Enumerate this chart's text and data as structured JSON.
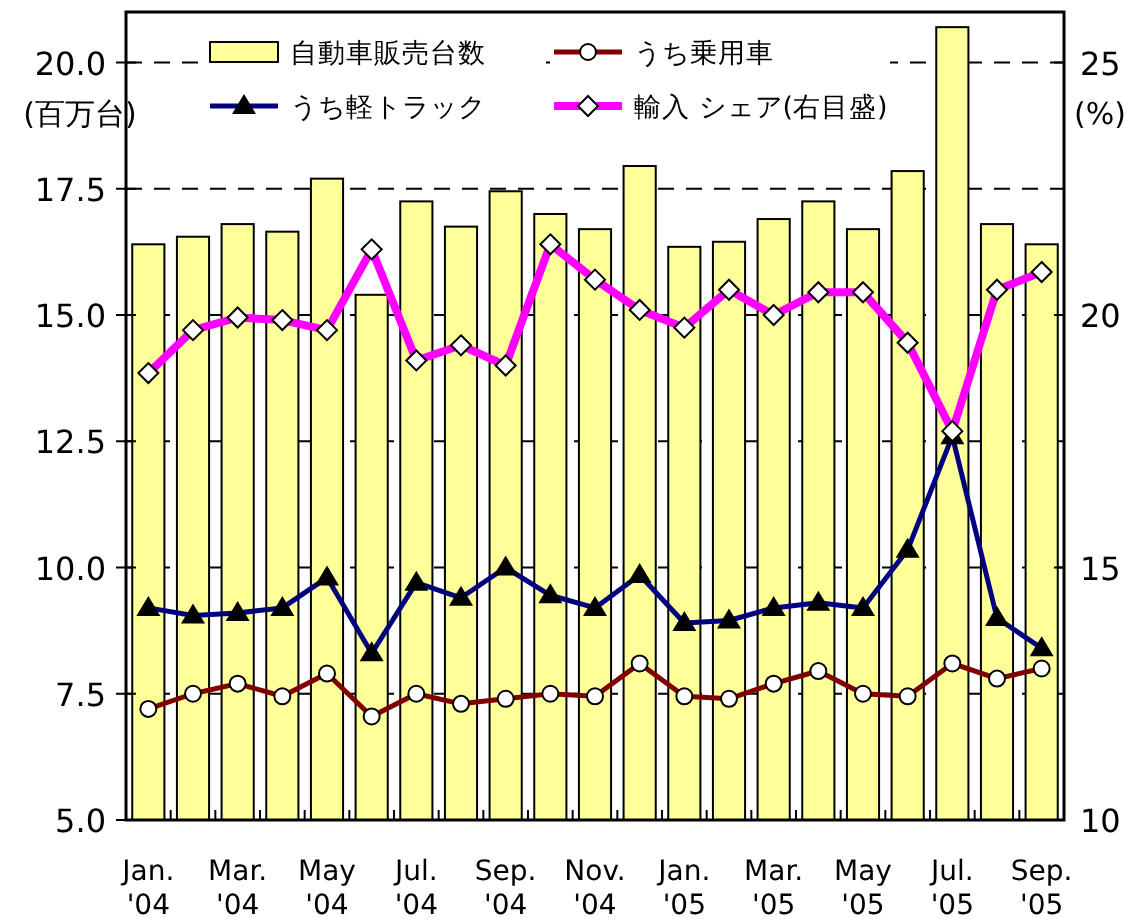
{
  "chart_data": {
    "type": "bar",
    "ylabel": "(百万台)",
    "y2label": "(%)",
    "categories": [
      "Jan. '04",
      null,
      "Mar. '04",
      null,
      "May '04",
      null,
      "Jul. '04",
      null,
      "Sep. '04",
      null,
      "Nov. '04",
      null,
      "Jan. '05",
      null,
      "Mar. '05",
      null,
      "May '05",
      null,
      "Jul. '05",
      null,
      "Sep. '05"
    ],
    "series": [
      {
        "name": "自動車販売台数",
        "color": "#ffff99",
        "values": [
          16.4,
          16.55,
          16.8,
          16.65,
          17.7,
          15.4,
          17.25,
          16.75,
          17.45,
          17.0,
          16.7,
          17.95,
          16.35,
          16.45,
          16.9,
          17.25,
          16.7,
          17.85,
          20.7,
          16.8,
          16.4
        ]
      },
      {
        "name": "うち乗用車",
        "type": "line",
        "color": "#800000",
        "marker": "circle",
        "values": [
          7.2,
          7.5,
          7.7,
          7.45,
          7.9,
          7.05,
          7.5,
          7.3,
          7.4,
          7.5,
          7.45,
          8.1,
          7.45,
          7.4,
          7.7,
          7.95,
          7.5,
          7.45,
          8.1,
          7.8,
          8.0
        ]
      },
      {
        "name": "うち軽トラック",
        "type": "line",
        "color": "#000080",
        "marker": "triangle",
        "values": [
          9.2,
          9.05,
          9.1,
          9.2,
          9.8,
          8.3,
          9.7,
          9.4,
          10.0,
          9.45,
          9.2,
          9.85,
          8.9,
          8.95,
          9.2,
          9.3,
          9.2,
          10.35,
          12.6,
          9.0,
          8.4
        ]
      },
      {
        "name": "輸入 シェア(右目盛)",
        "type": "line",
        "axis": "y2",
        "color": "#ff00ff",
        "marker": "diamond",
        "values": [
          18.85,
          19.7,
          19.95,
          19.9,
          19.7,
          21.3,
          19.1,
          19.4,
          19.0,
          21.4,
          20.7,
          20.1,
          19.75,
          20.5,
          20.0,
          20.45,
          20.45,
          19.45,
          17.7,
          20.5,
          20.85
        ]
      }
    ],
    "ylim": [
      5,
      21
    ],
    "yticks": [
      {
        "value": 5,
        "label": "5.0"
      },
      {
        "value": 7.5,
        "label": "7.5"
      },
      {
        "value": 10,
        "label": "10.0"
      },
      {
        "value": 12.5,
        "label": "12.5"
      },
      {
        "value": 15,
        "label": "15.0"
      },
      {
        "value": 17.5,
        "label": "17.5"
      },
      {
        "value": 20,
        "label": "20.0"
      }
    ],
    "y2lim": [
      10,
      26
    ],
    "y2ticks": [
      10,
      15,
      20,
      25
    ],
    "grid": "y",
    "legend": "top"
  }
}
